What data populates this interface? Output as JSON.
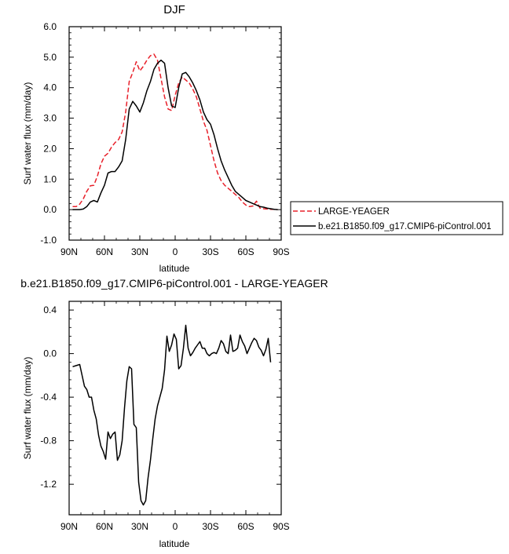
{
  "chart_data": [
    {
      "type": "line",
      "title": "DJF",
      "xlabel": "latitude",
      "ylabel": "Surf water flux (mm/day)",
      "xlim": [
        90,
        -90
      ],
      "ylim": [
        -1.0,
        6.0
      ],
      "x_ticks": [
        90,
        60,
        30,
        0,
        -30,
        -60,
        -90
      ],
      "x_tick_labels": [
        "90N",
        "60N",
        "30N",
        "0",
        "30S",
        "60S",
        "90S"
      ],
      "y_ticks": [
        -1,
        0,
        1,
        2,
        3,
        4,
        5,
        6
      ],
      "y_tick_labels": [
        "-1.0",
        "0.0",
        "1.0",
        "2.0",
        "3.0",
        "4.0",
        "5.0",
        "6.0"
      ],
      "grid": false,
      "legend_placement": "outside-right",
      "series": [
        {
          "name": "LARGE-YEAGER",
          "color": "#e8202a",
          "dash": "dashed",
          "x": [
            87,
            84,
            81,
            78,
            75,
            72,
            69,
            66,
            63,
            60,
            57,
            54,
            51,
            48,
            45,
            42,
            39,
            36,
            33,
            30,
            27,
            24,
            21,
            18,
            15,
            12,
            9,
            6,
            3,
            0,
            -3,
            -6,
            -9,
            -12,
            -15,
            -18,
            -21,
            -24,
            -27,
            -30,
            -33,
            -36,
            -39,
            -42,
            -45,
            -48,
            -51,
            -54,
            -57,
            -60,
            -63,
            -66,
            -69,
            -72,
            -75,
            -78,
            -81,
            -84,
            -87
          ],
          "y": [
            0.1,
            0.1,
            0.18,
            0.35,
            0.6,
            0.78,
            0.8,
            1.1,
            1.5,
            1.75,
            1.85,
            2.05,
            2.2,
            2.3,
            2.55,
            3.2,
            4.2,
            4.5,
            4.85,
            4.55,
            4.7,
            4.9,
            5.05,
            5.1,
            4.9,
            4.3,
            3.7,
            3.3,
            3.25,
            3.75,
            4.15,
            4.35,
            4.25,
            4.15,
            3.95,
            3.7,
            3.3,
            2.9,
            2.6,
            2.1,
            1.6,
            1.2,
            0.95,
            0.8,
            0.7,
            0.6,
            0.5,
            0.4,
            0.25,
            0.15,
            0.1,
            0.12,
            0.28,
            0.05,
            0.03,
            0.02,
            0.01,
            0.01,
            0.0
          ]
        },
        {
          "name": "b.e21.B1850.f09_g17.CMIP6-piControl.001",
          "color": "#000000",
          "dash": "solid",
          "x": [
            87,
            84,
            81,
            78,
            75,
            72,
            69,
            66,
            63,
            60,
            57,
            54,
            51,
            48,
            45,
            42,
            39,
            36,
            33,
            30,
            27,
            24,
            21,
            18,
            15,
            12,
            9,
            6,
            3,
            0,
            -3,
            -6,
            -9,
            -12,
            -15,
            -18,
            -21,
            -24,
            -27,
            -30,
            -33,
            -36,
            -39,
            -42,
            -45,
            -48,
            -51,
            -54,
            -57,
            -60,
            -63,
            -66,
            -69,
            -72,
            -75,
            -78,
            -81,
            -84,
            -87
          ],
          "y": [
            0.0,
            0.0,
            0.0,
            0.02,
            0.1,
            0.25,
            0.3,
            0.25,
            0.55,
            0.8,
            1.2,
            1.25,
            1.25,
            1.4,
            1.6,
            2.3,
            3.3,
            3.55,
            3.4,
            3.2,
            3.5,
            3.9,
            4.2,
            4.6,
            4.8,
            4.9,
            4.8,
            4.0,
            3.4,
            3.35,
            4.0,
            4.45,
            4.5,
            4.35,
            4.15,
            3.9,
            3.6,
            3.2,
            2.95,
            2.8,
            2.45,
            2.0,
            1.6,
            1.3,
            1.05,
            0.8,
            0.6,
            0.5,
            0.4,
            0.3,
            0.25,
            0.2,
            0.15,
            0.1,
            0.08,
            0.05,
            0.03,
            0.01,
            0.0
          ]
        }
      ]
    },
    {
      "type": "line",
      "title": "b.e21.B1850.f09_g17.CMIP6-piControl.001 - LARGE-YEAGER",
      "xlabel": "latitude",
      "ylabel": "Surf water flux (mm/day)",
      "xlim": [
        90,
        -90
      ],
      "ylim": [
        -1.48,
        0.48
      ],
      "x_ticks": [
        90,
        60,
        30,
        0,
        -30,
        -60,
        -90
      ],
      "x_tick_labels": [
        "90N",
        "60N",
        "30N",
        "0",
        "30S",
        "60S",
        "90S"
      ],
      "y_ticks": [
        0.4,
        0.0,
        -0.4,
        -0.8,
        -1.2
      ],
      "y_tick_labels": [
        "0.4",
        "0.0",
        "-0.4",
        "-0.8",
        "-1.2"
      ],
      "grid": false,
      "series": [
        {
          "color": "#000000",
          "dash": "solid",
          "x": [
            87,
            84,
            81,
            79,
            77,
            75,
            73,
            71,
            69,
            67,
            65,
            63,
            61,
            59,
            57,
            55,
            53,
            51,
            49,
            47,
            45,
            43,
            41,
            39,
            37,
            35,
            33,
            31,
            29,
            27,
            25,
            23,
            21,
            19,
            17,
            15,
            13,
            11,
            9,
            7,
            5,
            3,
            1,
            -1,
            -3,
            -5,
            -7,
            -9,
            -11,
            -13,
            -15,
            -17,
            -19,
            -21,
            -23,
            -25,
            -27,
            -29,
            -31,
            -33,
            -35,
            -37,
            -39,
            -41,
            -43,
            -45,
            -47,
            -49,
            -51,
            -53,
            -55,
            -57,
            -59,
            -61,
            -63,
            -65,
            -67,
            -69,
            -71,
            -73,
            -75,
            -77,
            -79,
            -81
          ],
          "y": [
            -0.12,
            -0.11,
            -0.1,
            -0.2,
            -0.3,
            -0.33,
            -0.4,
            -0.4,
            -0.52,
            -0.6,
            -0.75,
            -0.85,
            -0.9,
            -0.97,
            -0.72,
            -0.78,
            -0.74,
            -0.72,
            -0.98,
            -0.93,
            -0.8,
            -0.5,
            -0.25,
            -0.12,
            -0.14,
            -0.65,
            -0.68,
            -1.18,
            -1.35,
            -1.39,
            -1.35,
            -1.14,
            -0.98,
            -0.78,
            -0.6,
            -0.48,
            -0.4,
            -0.32,
            -0.15,
            0.16,
            0.02,
            0.08,
            0.18,
            0.13,
            -0.14,
            -0.11,
            0.05,
            0.26,
            0.05,
            -0.02,
            0.01,
            0.05,
            0.08,
            0.11,
            0.05,
            0.05,
            0.0,
            -0.02,
            0.0,
            0.01,
            0.0,
            0.05,
            0.12,
            0.09,
            0.02,
            0.0,
            0.17,
            0.02,
            0.03,
            0.05,
            0.17,
            0.11,
            0.07,
            0.0,
            0.05,
            0.1,
            0.14,
            0.12,
            0.06,
            0.03,
            -0.02,
            0.04,
            0.14,
            -0.08
          ]
        }
      ]
    }
  ],
  "legend": {
    "entry1": "LARGE-YEAGER",
    "entry2": "b.e21.B1850.f09_g17.CMIP6-piControl.001"
  }
}
